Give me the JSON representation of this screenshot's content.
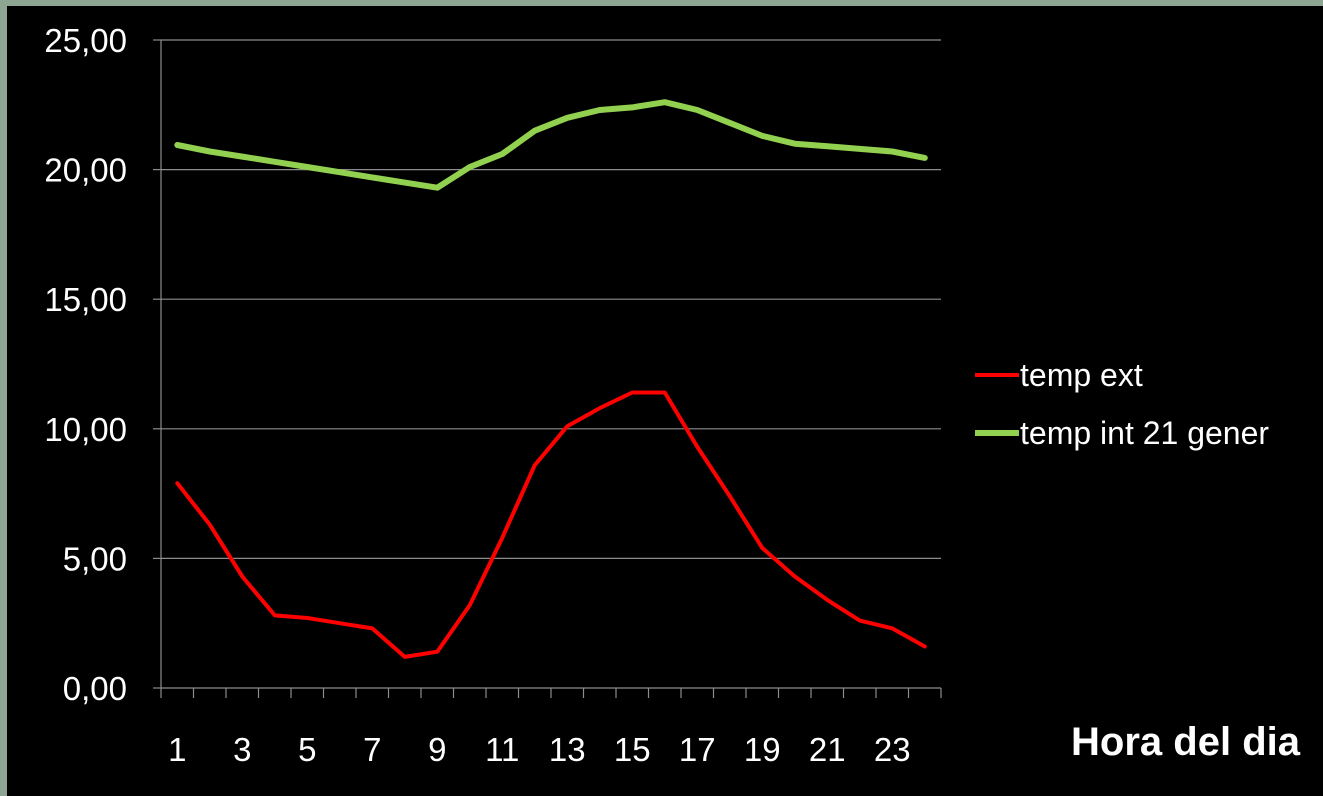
{
  "chart_data": {
    "type": "line",
    "title": "",
    "xlabel": "Hora del dia",
    "ylabel": "",
    "x": [
      1,
      2,
      3,
      4,
      5,
      6,
      7,
      8,
      9,
      10,
      11,
      12,
      13,
      14,
      15,
      16,
      17,
      18,
      19,
      20,
      21,
      22,
      23,
      24
    ],
    "x_tick_labels": [
      "1",
      "3",
      "5",
      "7",
      "9",
      "11",
      "13",
      "15",
      "17",
      "19",
      "21",
      "23"
    ],
    "y_tick_labels": [
      "0,00",
      "5,00",
      "10,00",
      "15,00",
      "20,00",
      "25,00"
    ],
    "ylim": [
      0,
      25
    ],
    "grid": true,
    "legend_position": "right",
    "series": [
      {
        "name": "temp ext",
        "color": "#ff0000",
        "values": [
          7.9,
          6.3,
          4.3,
          2.8,
          2.7,
          2.5,
          2.3,
          1.2,
          1.4,
          3.2,
          5.8,
          8.6,
          10.1,
          10.8,
          11.4,
          11.4,
          9.3,
          7.4,
          5.4,
          4.3,
          3.4,
          2.6,
          2.3,
          1.6
        ]
      },
      {
        "name": "temp int 21 gener",
        "color": "#92d050",
        "values": [
          20.95,
          20.7,
          20.5,
          20.3,
          20.1,
          19.9,
          19.7,
          19.5,
          19.3,
          20.1,
          20.6,
          21.5,
          22.0,
          22.3,
          22.4,
          22.6,
          22.3,
          21.8,
          21.3,
          21.0,
          20.9,
          20.8,
          20.7,
          20.45
        ]
      }
    ]
  }
}
